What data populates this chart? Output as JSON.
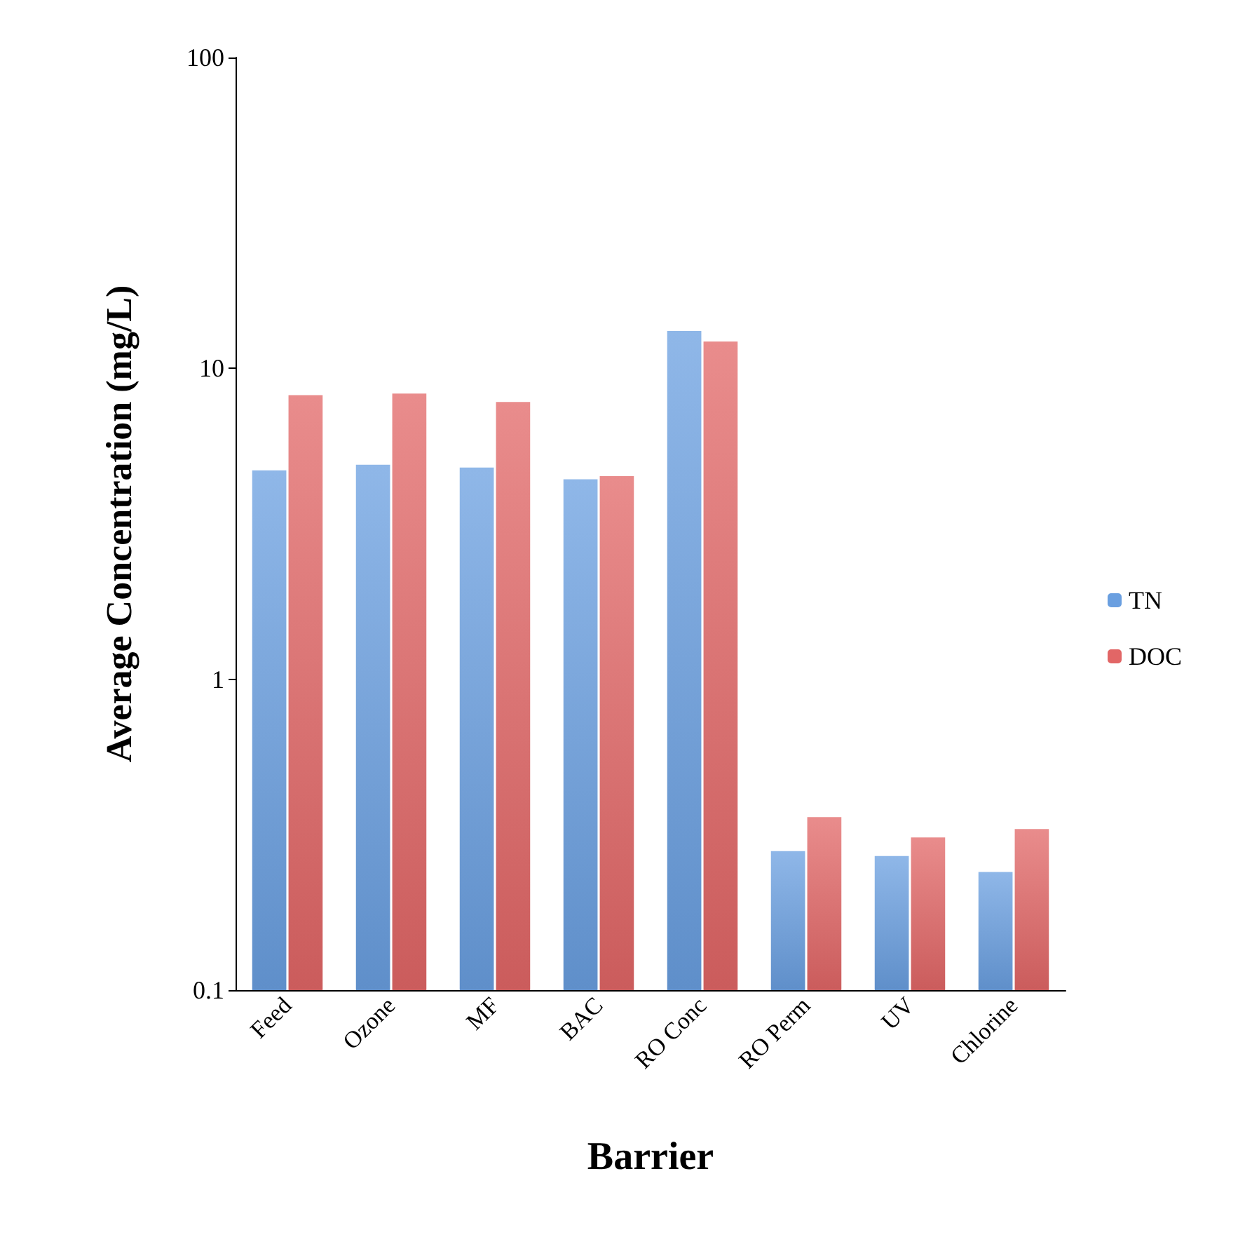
{
  "chart_data": {
    "type": "bar",
    "xlabel": "Barrier",
    "ylabel": "Average Concentration (mg/L)",
    "categories": [
      "Feed",
      "Ozone",
      "MF",
      "BAC",
      "RO Conc",
      "RO Perm",
      "UV",
      "Chlorine"
    ],
    "series": [
      {
        "name": "TN",
        "color": "#6a9fe0",
        "values": [
          4.7,
          4.9,
          4.8,
          4.4,
          13.2,
          0.28,
          0.27,
          0.24
        ]
      },
      {
        "name": "DOC",
        "color": "#e26666",
        "values": [
          8.2,
          8.3,
          7.8,
          4.5,
          12.2,
          0.36,
          0.31,
          0.33
        ]
      }
    ],
    "log": "y",
    "ylim": [
      0.1,
      100
    ],
    "yticks": [
      0.1,
      1,
      10,
      100
    ],
    "grid": false,
    "legend": "right"
  }
}
